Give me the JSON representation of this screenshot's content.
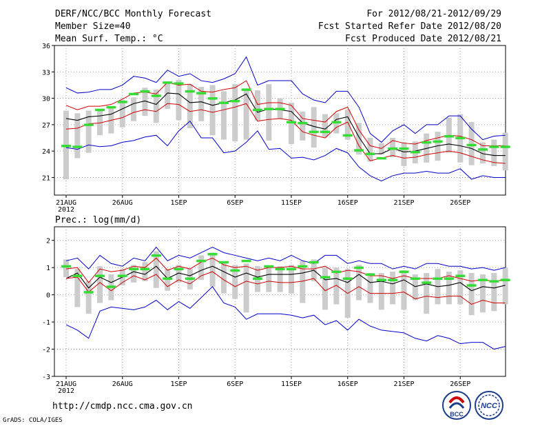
{
  "header": {
    "title": "DERF/NCC/BCC Monthly Forecast",
    "member_size": "Member Size=40",
    "variable": "Mean Surf. Temp.: °C",
    "period": "For 2012/08/21-2012/09/29",
    "start": "Fcst Started Refer Date 2012/08/20",
    "produced": "Fcst Produced Date 2012/08/21"
  },
  "precip_label": "Prec.: log(mm/d)",
  "footer": {
    "url": "http://cmdp.ncc.cma.gov.cn",
    "credit": "GrADS: COLA/IGES"
  },
  "logos": {
    "bcc": "BCC",
    "ncc": "NCC"
  },
  "colors": {
    "ens_mean": "#000000",
    "spread": "#d00000",
    "extreme": "#0000cc",
    "box": "#cccccc",
    "obs": "#33dd33"
  },
  "chart_data": [
    {
      "type": "line",
      "name": "temperature",
      "title": "Mean Surf. Temp.: °C",
      "ylim": [
        19,
        36
      ],
      "yticks": [
        21,
        24,
        27,
        30,
        33,
        36
      ],
      "x": [
        1,
        2,
        3,
        4,
        5,
        6,
        7,
        8,
        9,
        10,
        11,
        12,
        13,
        14,
        15,
        16,
        17,
        18,
        19,
        20,
        21,
        22,
        23,
        24,
        25,
        26,
        27,
        28,
        29,
        30,
        31,
        32,
        33,
        34,
        35,
        36,
        37,
        38,
        39,
        40
      ],
      "xticks": [
        {
          "day": 1,
          "label": "21AUG"
        },
        {
          "day": 6,
          "label": "26AUG"
        },
        {
          "day": 11,
          "label": "1SEP"
        },
        {
          "day": 16,
          "label": "6SEP"
        },
        {
          "day": 21,
          "label": "11SEP"
        },
        {
          "day": 26,
          "label": "16SEP"
        },
        {
          "day": 31,
          "label": "21SEP"
        },
        {
          "day": 36,
          "label": "26SEP"
        }
      ],
      "year_label": "2012",
      "series": [
        {
          "name": "max",
          "color": "#0000cc",
          "values": [
            31.2,
            30.6,
            30.7,
            31.0,
            31.0,
            31.5,
            32.5,
            32.3,
            31.8,
            33.2,
            32.5,
            32.8,
            32.0,
            31.8,
            32.2,
            32.8,
            34.7,
            31.5,
            32.0,
            32.0,
            32.0,
            30.5,
            29.8,
            29.5,
            30.8,
            30.8,
            29.0,
            26.0,
            25.0,
            26.3,
            27.0,
            26.0,
            27.0,
            27.0,
            28.0,
            28.0,
            26.5,
            25.3,
            25.7,
            25.8
          ]
        },
        {
          "name": "upper",
          "color": "#d00000",
          "values": [
            29.2,
            28.7,
            29.1,
            29.1,
            29.3,
            29.9,
            30.6,
            30.7,
            30.5,
            31.8,
            31.5,
            31.6,
            30.8,
            30.7,
            31.0,
            31.2,
            32.0,
            29.3,
            29.5,
            29.5,
            29.2,
            27.7,
            27.5,
            27.3,
            28.5,
            29.0,
            26.4,
            24.6,
            24.3,
            25.2,
            24.9,
            24.8,
            25.2,
            25.5,
            25.8,
            25.7,
            25.3,
            24.6,
            24.6,
            24.6
          ]
        },
        {
          "name": "mean",
          "color": "#000000",
          "values": [
            27.7,
            27.5,
            27.9,
            28.0,
            28.2,
            28.8,
            29.4,
            29.7,
            29.3,
            30.6,
            30.5,
            29.5,
            29.6,
            29.2,
            29.5,
            29.8,
            30.5,
            28.4,
            28.8,
            28.7,
            28.5,
            27.2,
            26.8,
            26.5,
            27.6,
            27.9,
            25.6,
            23.7,
            23.7,
            24.3,
            23.9,
            24.0,
            24.3,
            24.6,
            24.8,
            24.6,
            24.3,
            23.7,
            23.5,
            23.5
          ]
        },
        {
          "name": "lower",
          "color": "#d00000",
          "values": [
            26.5,
            26.6,
            27.1,
            27.2,
            27.5,
            27.8,
            28.4,
            28.7,
            28.5,
            29.4,
            29.3,
            28.5,
            28.7,
            28.4,
            28.7,
            29.0,
            29.4,
            27.4,
            27.6,
            27.7,
            27.5,
            26.2,
            25.8,
            25.5,
            26.7,
            27.3,
            24.6,
            22.9,
            23.2,
            23.5,
            23.2,
            23.3,
            23.6,
            23.8,
            24.0,
            23.8,
            23.4,
            23.0,
            22.7,
            22.6
          ]
        },
        {
          "name": "min",
          "color": "#0000cc",
          "values": [
            24.4,
            24.2,
            24.7,
            24.5,
            24.6,
            25.0,
            25.2,
            25.6,
            25.8,
            24.6,
            26.3,
            27.4,
            25.5,
            25.5,
            23.8,
            24.0,
            25.0,
            26.3,
            24.2,
            24.3,
            23.2,
            23.3,
            23.0,
            23.5,
            24.3,
            23.8,
            22.2,
            21.2,
            20.6,
            21.2,
            21.5,
            21.5,
            21.7,
            21.5,
            21.5,
            22.0,
            20.8,
            21.2,
            21.0,
            21.0
          ]
        }
      ],
      "boxes": [
        [
          20.8,
          28.6
        ],
        [
          23.2,
          28.3
        ],
        [
          23.8,
          28.6
        ],
        [
          25.8,
          28.8
        ],
        [
          26.0,
          29.1
        ],
        [
          26.7,
          29.8
        ],
        [
          27.4,
          30.1
        ],
        [
          28.0,
          31.2
        ],
        [
          27.2,
          31.0
        ],
        [
          28.8,
          31.7
        ],
        [
          27.5,
          32.1
        ],
        [
          26.6,
          31.6
        ],
        [
          27.4,
          31.3
        ],
        [
          25.8,
          31.5
        ],
        [
          25.3,
          30.8
        ],
        [
          25.1,
          31.6
        ],
        [
          25.3,
          30.9
        ],
        [
          27.5,
          30.9
        ],
        [
          25.2,
          31.6
        ],
        [
          27.7,
          30.0
        ],
        [
          24.8,
          29.5
        ],
        [
          25.2,
          28.5
        ],
        [
          24.4,
          29.0
        ],
        [
          25.6,
          28.2
        ],
        [
          26.0,
          28.3
        ],
        [
          25.3,
          28.7
        ],
        [
          23.6,
          27.2
        ],
        [
          22.8,
          25.5
        ],
        [
          23.6,
          24.9
        ],
        [
          23.3,
          25.5
        ],
        [
          22.3,
          25.0
        ],
        [
          22.6,
          25.1
        ],
        [
          22.7,
          26.0
        ],
        [
          22.9,
          26.2
        ],
        [
          23.8,
          27.8
        ],
        [
          22.7,
          28.2
        ],
        [
          22.4,
          27.3
        ],
        [
          22.6,
          25.0
        ],
        [
          22.3,
          25.3
        ],
        [
          21.8,
          26.1
        ]
      ],
      "obs": [
        24.6,
        24.5,
        27.0,
        28.7,
        29.0,
        29.6,
        30.5,
        30.8,
        30.3,
        31.8,
        31.7,
        30.8,
        30.6,
        30.0,
        29.5,
        29.7,
        31.0,
        28.7,
        28.8,
        28.8,
        27.3,
        27.2,
        26.2,
        26.2,
        27.3,
        25.8,
        24.1,
        23.7,
        23.2,
        24.3,
        24.3,
        23.9,
        25.0,
        25.1,
        25.7,
        25.5,
        24.7,
        24.2,
        24.5,
        24.5
      ]
    },
    {
      "type": "line",
      "name": "precipitation",
      "title": "Prec.: log(mm/d)",
      "ylim": [
        -3,
        2.5
      ],
      "yticks": [
        -3,
        -2,
        -1,
        0,
        1,
        2
      ],
      "x": [
        1,
        2,
        3,
        4,
        5,
        6,
        7,
        8,
        9,
        10,
        11,
        12,
        13,
        14,
        15,
        16,
        17,
        18,
        19,
        20,
        21,
        22,
        23,
        24,
        25,
        26,
        27,
        28,
        29,
        30,
        31,
        32,
        33,
        34,
        35,
        36,
        37,
        38,
        39,
        40
      ],
      "xticks": [
        {
          "day": 1,
          "label": "21AUG"
        },
        {
          "day": 6,
          "label": "26AUG"
        },
        {
          "day": 11,
          "label": "1SEP"
        },
        {
          "day": 16,
          "label": "6SEP"
        },
        {
          "day": 21,
          "label": "11SEP"
        },
        {
          "day": 26,
          "label": "16SEP"
        },
        {
          "day": 31,
          "label": "21SEP"
        },
        {
          "day": 36,
          "label": "26SEP"
        }
      ],
      "year_label": "2012",
      "series": [
        {
          "name": "max",
          "color": "#0000cc",
          "values": [
            1.25,
            1.35,
            0.95,
            1.45,
            1.15,
            1.05,
            1.35,
            1.25,
            1.75,
            1.25,
            1.45,
            1.35,
            1.55,
            1.75,
            1.55,
            1.45,
            1.35,
            1.25,
            1.35,
            1.25,
            1.45,
            1.25,
            1.15,
            1.45,
            1.45,
            1.15,
            1.25,
            1.15,
            1.15,
            0.95,
            1.05,
            0.95,
            1.15,
            1.15,
            1.05,
            1.05,
            0.95,
            1.0,
            0.9,
            1.0
          ]
        },
        {
          "name": "upper",
          "color": "#d00000",
          "values": [
            0.95,
            1.0,
            0.45,
            0.95,
            0.85,
            0.9,
            1.05,
            1.0,
            1.35,
            0.9,
            1.05,
            0.95,
            1.2,
            1.35,
            1.1,
            1.0,
            1.05,
            0.9,
            1.0,
            1.0,
            1.05,
            0.95,
            0.95,
            1.05,
            0.8,
            0.9,
            0.85,
            0.7,
            0.7,
            0.6,
            0.7,
            0.6,
            0.6,
            0.6,
            0.7,
            0.6,
            0.5,
            0.55,
            0.5,
            0.55
          ]
        },
        {
          "name": "mean",
          "color": "#000000",
          "values": [
            0.6,
            0.8,
            0.25,
            0.65,
            0.45,
            0.65,
            0.85,
            0.75,
            1.05,
            0.6,
            0.8,
            0.7,
            0.9,
            1.05,
            0.85,
            0.65,
            0.8,
            0.65,
            0.75,
            0.75,
            0.75,
            0.8,
            0.9,
            0.55,
            0.6,
            0.45,
            0.75,
            0.45,
            0.5,
            0.4,
            0.55,
            0.3,
            0.4,
            0.3,
            0.35,
            0.45,
            0.15,
            0.3,
            0.25,
            0.35
          ]
        },
        {
          "name": "lower",
          "color": "#d00000",
          "values": [
            0.6,
            0.65,
            0.1,
            0.45,
            0.15,
            0.45,
            0.7,
            0.55,
            0.75,
            0.3,
            0.55,
            0.4,
            0.7,
            0.85,
            0.55,
            0.3,
            0.5,
            0.4,
            0.5,
            0.45,
            0.45,
            0.5,
            0.6,
            0.15,
            0.35,
            0.05,
            0.3,
            0.05,
            0.05,
            0.05,
            0.1,
            -0.15,
            -0.05,
            -0.1,
            -0.05,
            -0.05,
            -0.35,
            -0.2,
            -0.3,
            -0.3
          ]
        },
        {
          "name": "min",
          "color": "#0000cc",
          "values": [
            -1.1,
            -1.3,
            -1.6,
            -0.6,
            -0.45,
            -0.5,
            -0.55,
            -0.45,
            -0.2,
            -0.55,
            -0.25,
            -0.5,
            -0.1,
            0.3,
            -0.3,
            -0.45,
            -0.9,
            -0.7,
            -0.7,
            -0.7,
            -0.75,
            -0.85,
            -0.75,
            -1.1,
            -0.95,
            -1.3,
            -0.9,
            -1.15,
            -1.3,
            -1.35,
            -1.4,
            -1.6,
            -1.7,
            -1.5,
            -1.6,
            -1.8,
            -1.75,
            -1.75,
            -2.0,
            -1.9
          ]
        }
      ],
      "boxes": [
        [
          0.65,
          1.3
        ],
        [
          -0.45,
          0.95
        ],
        [
          -0.7,
          0.5
        ],
        [
          -0.3,
          1.05
        ],
        [
          -0.2,
          0.75
        ],
        [
          0.35,
          0.95
        ],
        [
          0.45,
          1.1
        ],
        [
          0.5,
          1.2
        ],
        [
          0.25,
          1.6
        ],
        [
          0.15,
          0.95
        ],
        [
          0.45,
          1.1
        ],
        [
          0.2,
          0.95
        ],
        [
          0.55,
          1.45
        ],
        [
          0.3,
          1.55
        ],
        [
          0.05,
          1.15
        ],
        [
          -0.15,
          1.1
        ],
        [
          -0.65,
          1.15
        ],
        [
          0.1,
          1.05
        ],
        [
          0.1,
          1.05
        ],
        [
          0.1,
          1.05
        ],
        [
          0.05,
          1.1
        ],
        [
          -0.3,
          1.25
        ],
        [
          0.5,
          1.3
        ],
        [
          -0.55,
          1.0
        ],
        [
          -0.35,
          1.0
        ],
        [
          -0.85,
          0.95
        ],
        [
          -0.2,
          1.1
        ],
        [
          -0.3,
          0.8
        ],
        [
          -0.55,
          0.8
        ],
        [
          -0.35,
          0.85
        ],
        [
          -0.55,
          0.9
        ],
        [
          -0.2,
          0.75
        ],
        [
          -0.7,
          0.8
        ],
        [
          -0.35,
          0.95
        ],
        [
          -0.35,
          0.85
        ],
        [
          -0.35,
          0.9
        ],
        [
          -0.75,
          0.8
        ],
        [
          -0.65,
          0.75
        ],
        [
          -0.6,
          0.8
        ],
        [
          -0.35,
          1.0
        ]
      ],
      "obs": [
        1.05,
        0.7,
        0.1,
        0.7,
        0.3,
        0.7,
        0.95,
        0.95,
        1.45,
        0.6,
        0.95,
        0.6,
        1.25,
        1.5,
        1.2,
        0.9,
        1.25,
        0.6,
        1.05,
        0.95,
        0.95,
        1.05,
        1.2,
        0.65,
        0.85,
        0.6,
        1.0,
        0.75,
        0.55,
        0.55,
        0.85,
        0.6,
        0.45,
        0.6,
        0.6,
        0.7,
        0.35,
        0.55,
        0.5,
        0.55
      ]
    }
  ]
}
